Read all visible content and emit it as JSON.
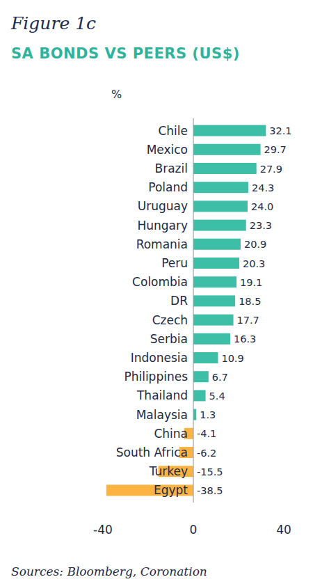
{
  "chart_data": {
    "type": "bar",
    "orientation": "horizontal",
    "annotations": [
      "Figure 1c"
    ],
    "title": "SA BONDS VS PEERS (US$)",
    "xlabel": "%",
    "source": "Sources: Bloomberg, Coronation",
    "categories": [
      "Chile",
      "Mexico",
      "Brazil",
      "Poland",
      "Uruguay",
      "Hungary",
      "Romania",
      "Peru",
      "Colombia",
      "DR",
      "Czech",
      "Serbia",
      "Indonesia",
      "Philippines",
      "Thailand",
      "Malaysia",
      "China",
      "South Africa",
      "Turkey",
      "Egypt"
    ],
    "values": [
      32.1,
      29.7,
      27.9,
      24.3,
      24.0,
      23.3,
      20.9,
      20.3,
      19.1,
      18.5,
      17.7,
      16.3,
      10.9,
      6.7,
      5.4,
      1.3,
      -4.1,
      -6.2,
      -15.5,
      -38.5
    ],
    "value_labels": [
      "32.1",
      "29.7",
      "27.9",
      "24.3",
      "24.0",
      "23.3",
      "20.9",
      "20.3",
      "19.1",
      "18.5",
      "17.7",
      "16.3",
      "10.9",
      "6.7",
      "5.4",
      "1.3",
      "-4.1",
      "-6.2",
      "-15.5",
      "-38.5"
    ],
    "colors": [
      "#3dbea6",
      "#3dbea6",
      "#3dbea6",
      "#3dbea6",
      "#3dbea6",
      "#3dbea6",
      "#3dbea6",
      "#3dbea6",
      "#3dbea6",
      "#3dbea6",
      "#3dbea6",
      "#3dbea6",
      "#3dbea6",
      "#3dbea6",
      "#3dbea6",
      "#3dbea6",
      "#fbb444",
      "#fbb444",
      "#fbb444",
      "#fbb444"
    ],
    "xlim": [
      -40,
      40
    ],
    "xticks": [
      -40,
      0,
      40
    ],
    "grid": false,
    "data_labels": true
  }
}
